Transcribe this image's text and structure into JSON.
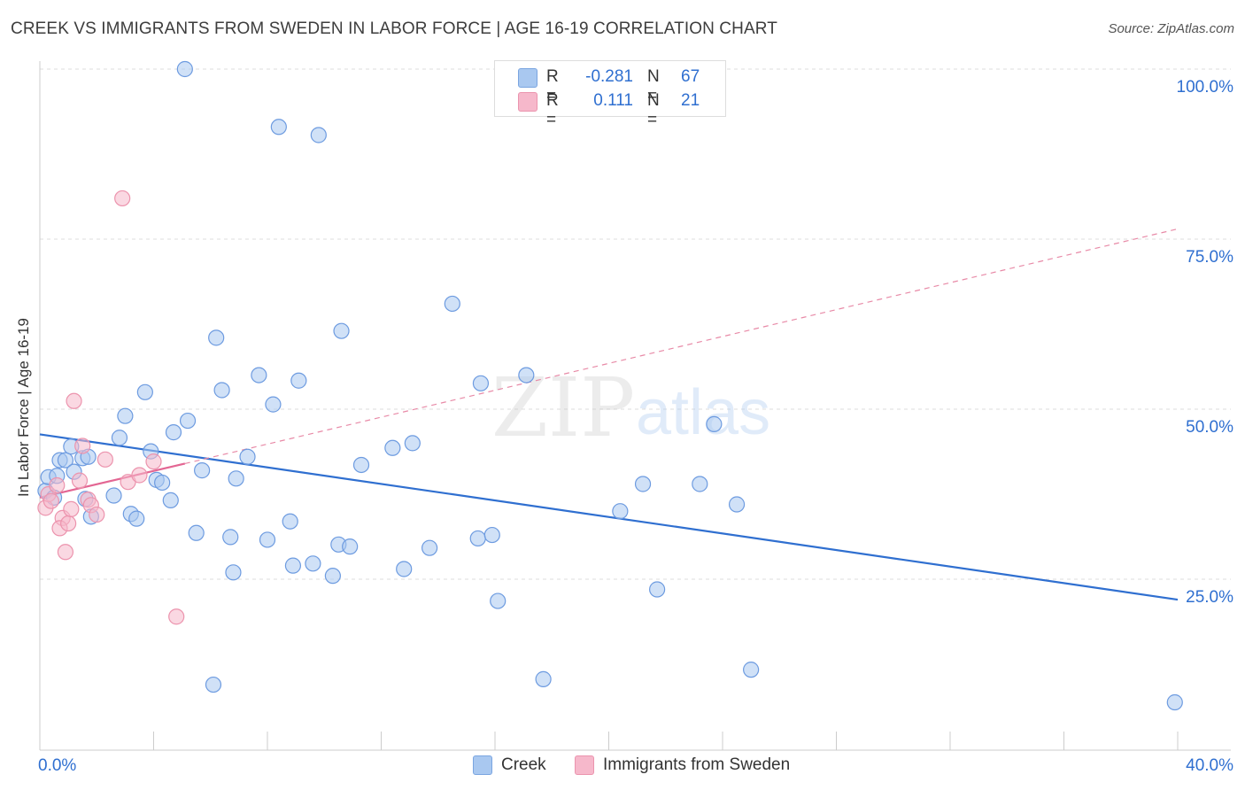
{
  "title": "CREEK VS IMMIGRANTS FROM SWEDEN IN LABOR FORCE | AGE 16-19 CORRELATION CHART",
  "source": "Source: ZipAtlas.com",
  "watermark": {
    "zip": "ZIP",
    "atlas": "atlas"
  },
  "legend": {
    "rows": [
      {
        "r_label": "R =",
        "r_value": "-0.281",
        "n_label": "N =",
        "n_value": "67",
        "color": "#a9c8f0"
      },
      {
        "r_label": "R =",
        "r_value": "0.111",
        "n_label": "N =",
        "n_value": "21",
        "color": "#f6b8cb"
      }
    ]
  },
  "bottom_legend": {
    "creek": "Creek",
    "sweden": "Immigrants from Sweden"
  },
  "chart_data": {
    "type": "scatter",
    "title": "CREEK VS IMMIGRANTS FROM SWEDEN IN LABOR FORCE | AGE 16-19 CORRELATION CHART",
    "ylabel": "In Labor Force | Age 16-19",
    "xlabel": "",
    "xlim": [
      0,
      40
    ],
    "ylim": [
      0,
      102
    ],
    "x_tick_labels": [
      "0.0%",
      "40.0%"
    ],
    "y_ticks": [
      25,
      50,
      75,
      100
    ],
    "y_tick_labels": [
      "25.0%",
      "50.0%",
      "75.0%",
      "100.0%"
    ],
    "colors": {
      "creek": "#2f6fd0",
      "creek_fill": "#a9c8f0",
      "sweden": "#e36693",
      "sweden_fill": "#f6b8cb"
    },
    "series": [
      {
        "name": "Creek",
        "points": [
          [
            0.2,
            38
          ],
          [
            0.3,
            40
          ],
          [
            0.5,
            37
          ],
          [
            0.6,
            40.2
          ],
          [
            0.7,
            42.5
          ],
          [
            0.9,
            42.5
          ],
          [
            1.2,
            40.8
          ],
          [
            1.5,
            42.8
          ],
          [
            1.7,
            43
          ],
          [
            1.6,
            36.8
          ],
          [
            1.8,
            34.2
          ],
          [
            2.6,
            37.3
          ],
          [
            2.8,
            45.8
          ],
          [
            3.0,
            49
          ],
          [
            3.2,
            34.6
          ],
          [
            3.4,
            33.9
          ],
          [
            3.7,
            52.5
          ],
          [
            3.9,
            43.8
          ],
          [
            4.1,
            39.6
          ],
          [
            4.3,
            39.2
          ],
          [
            4.6,
            36.6
          ],
          [
            4.7,
            46.6
          ],
          [
            5.2,
            48.3
          ],
          [
            5.5,
            31.8
          ],
          [
            5.7,
            41
          ],
          [
            5.1,
            100
          ],
          [
            6.1,
            9.5
          ],
          [
            6.2,
            60.5
          ],
          [
            6.4,
            52.8
          ],
          [
            6.7,
            31.2
          ],
          [
            6.8,
            26
          ],
          [
            6.9,
            39.8
          ],
          [
            7.3,
            43
          ],
          [
            7.7,
            55
          ],
          [
            8.0,
            30.8
          ],
          [
            8.2,
            50.7
          ],
          [
            8.4,
            91.5
          ],
          [
            8.8,
            33.5
          ],
          [
            8.9,
            27
          ],
          [
            9.1,
            54.2
          ],
          [
            9.6,
            27.3
          ],
          [
            9.8,
            90.3
          ],
          [
            10.3,
            25.5
          ],
          [
            10.5,
            30.1
          ],
          [
            10.6,
            61.5
          ],
          [
            10.9,
            29.8
          ],
          [
            11.3,
            41.8
          ],
          [
            12.4,
            44.3
          ],
          [
            12.8,
            26.5
          ],
          [
            13.1,
            45
          ],
          [
            13.7,
            29.6
          ],
          [
            14.5,
            65.5
          ],
          [
            15.4,
            31
          ],
          [
            15.5,
            53.8
          ],
          [
            15.9,
            31.5
          ],
          [
            16.1,
            21.8
          ],
          [
            17.1,
            55
          ],
          [
            17.7,
            10.3
          ],
          [
            20.4,
            35
          ],
          [
            21.2,
            39
          ],
          [
            21.7,
            23.5
          ],
          [
            23.2,
            39
          ],
          [
            23.7,
            47.8
          ],
          [
            24.5,
            36
          ],
          [
            25.0,
            11.7
          ],
          [
            39.9,
            6.9
          ],
          [
            1.1,
            44.5
          ]
        ],
        "trend": {
          "x": [
            0,
            40
          ],
          "y": [
            46.3,
            22.0
          ]
        }
      },
      {
        "name": "Immigrants from Sweden",
        "points": [
          [
            0.2,
            35.5
          ],
          [
            0.3,
            37.5
          ],
          [
            0.4,
            36.5
          ],
          [
            0.6,
            38.8
          ],
          [
            0.8,
            34
          ],
          [
            0.7,
            32.5
          ],
          [
            0.9,
            29
          ],
          [
            1.0,
            33.2
          ],
          [
            1.1,
            35.3
          ],
          [
            1.2,
            51.2
          ],
          [
            1.4,
            39.5
          ],
          [
            1.5,
            44.6
          ],
          [
            1.7,
            36.7
          ],
          [
            1.8,
            35.9
          ],
          [
            2.0,
            34.5
          ],
          [
            2.3,
            42.6
          ],
          [
            2.9,
            81
          ],
          [
            3.1,
            39.3
          ],
          [
            3.5,
            40.3
          ],
          [
            4.0,
            42.3
          ],
          [
            4.8,
            19.5
          ]
        ],
        "trend": {
          "x": [
            0,
            5.1
          ],
          "y": [
            37.0,
            42.0
          ]
        },
        "trend_extension": {
          "x": [
            5.1,
            40
          ],
          "y": [
            42.0,
            76.5
          ]
        }
      }
    ]
  }
}
